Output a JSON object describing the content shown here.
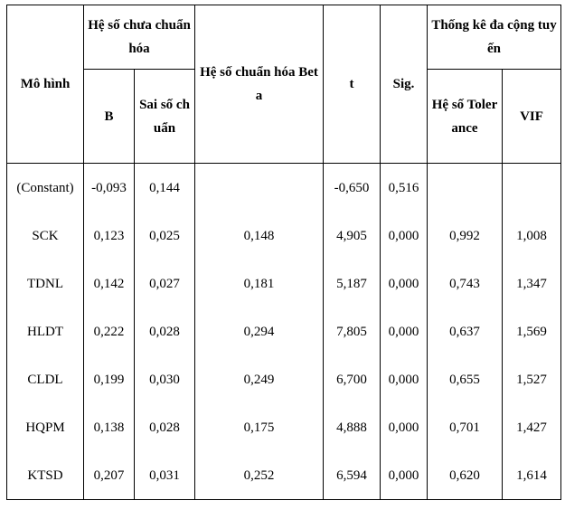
{
  "table": {
    "header": {
      "model": "Mô hình",
      "unstandardized": "Hệ số chưa chuẩn hóa",
      "b": "B",
      "std_error": "Sai số chuẩn",
      "standardized": "Hệ số chuẩn hóa Beta",
      "t": "t",
      "sig": "Sig.",
      "collinearity": "Thống kê đa cộng tuyến",
      "tolerance": "Hệ số Tolerance",
      "vif": "VIF"
    },
    "rows": [
      [
        "(Constant)",
        "-0,093",
        "0,144",
        null,
        "-0,650",
        "0,516",
        null,
        null
      ],
      [
        "SCK",
        "0,123",
        "0,025",
        "0,148",
        "4,905",
        "0,000",
        "0,992",
        "1,008"
      ],
      [
        "TDNL",
        "0,142",
        "0,027",
        "0,181",
        "5,187",
        "0,000",
        "0,743",
        "1,347"
      ],
      [
        "HLDT",
        "0,222",
        "0,028",
        "0,294",
        "7,805",
        "0,000",
        "0,637",
        "1,569"
      ],
      [
        "CLDL",
        "0,199",
        "0,030",
        "0,249",
        "6,700",
        "0,000",
        "0,655",
        "1,527"
      ],
      [
        "HQPM",
        "0,138",
        "0,028",
        "0,175",
        "4,888",
        "0,000",
        "0,701",
        "1,427"
      ],
      [
        "KTSD",
        "0,207",
        "0,031",
        "0,252",
        "6,594",
        "0,000",
        "0,620",
        "1,614"
      ]
    ]
  }
}
